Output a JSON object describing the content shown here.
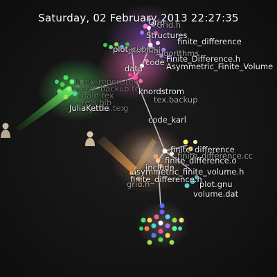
{
  "datetime": "Saturday, 02 February 2013 22:27:35",
  "labels": {
    "grid": "Grid",
    "grid_h": "Grid.h",
    "structures": "Structures",
    "finite_difference_dir": "finite_difference",
    "algorithms": "Algorithms",
    "plot_cubic": "plot_cubic",
    "plot_cubi": "plotcubi",
    "finite_difference_h_top": "Finite_Difference.h",
    "code": "code",
    "asymmetric_finite_volume_top": "Asymmetric_Finite_Volume",
    "data": "data",
    "user_knordstrom": "knordstrom",
    "tex_backup": "tex.backup",
    "ghost_1": "latex_report.tex",
    "ghost_2": "report_backup.tex",
    "ghost_3": "main.tex",
    "ghost_4": "refs.bib",
    "ghost_5": "figures.tex",
    "ghost_6": "g",
    "user_juliakettle": "JuliaKettle",
    "code_karl": "code_karl",
    "finite_difference_file": "finite_difference",
    "finite_difference_cc": "finite_difference.cc",
    "finite_difference_o": "finite_difference.o",
    "include": "include",
    "asymmetric_finite_volume_h": "asymmetric_finite_volume.h",
    "finite_difference_h": "finite_difference.h",
    "grid_h_low": "grid.h",
    "plot_gnu": "plot.gnu",
    "volume_dat": "volume.dat"
  },
  "colors": {
    "background": "#151515",
    "edge": "#e8d4dc",
    "pink": "#ff4fa0",
    "green": "#3ad24a",
    "orange": "#e08a3c",
    "yellow": "#ffd84a",
    "blue": "#5a78ff",
    "cyan": "#4fd8d0",
    "purple": "#b070ff",
    "lime": "#9ae04a"
  },
  "icons": [
    "user-avatar-icon"
  ]
}
